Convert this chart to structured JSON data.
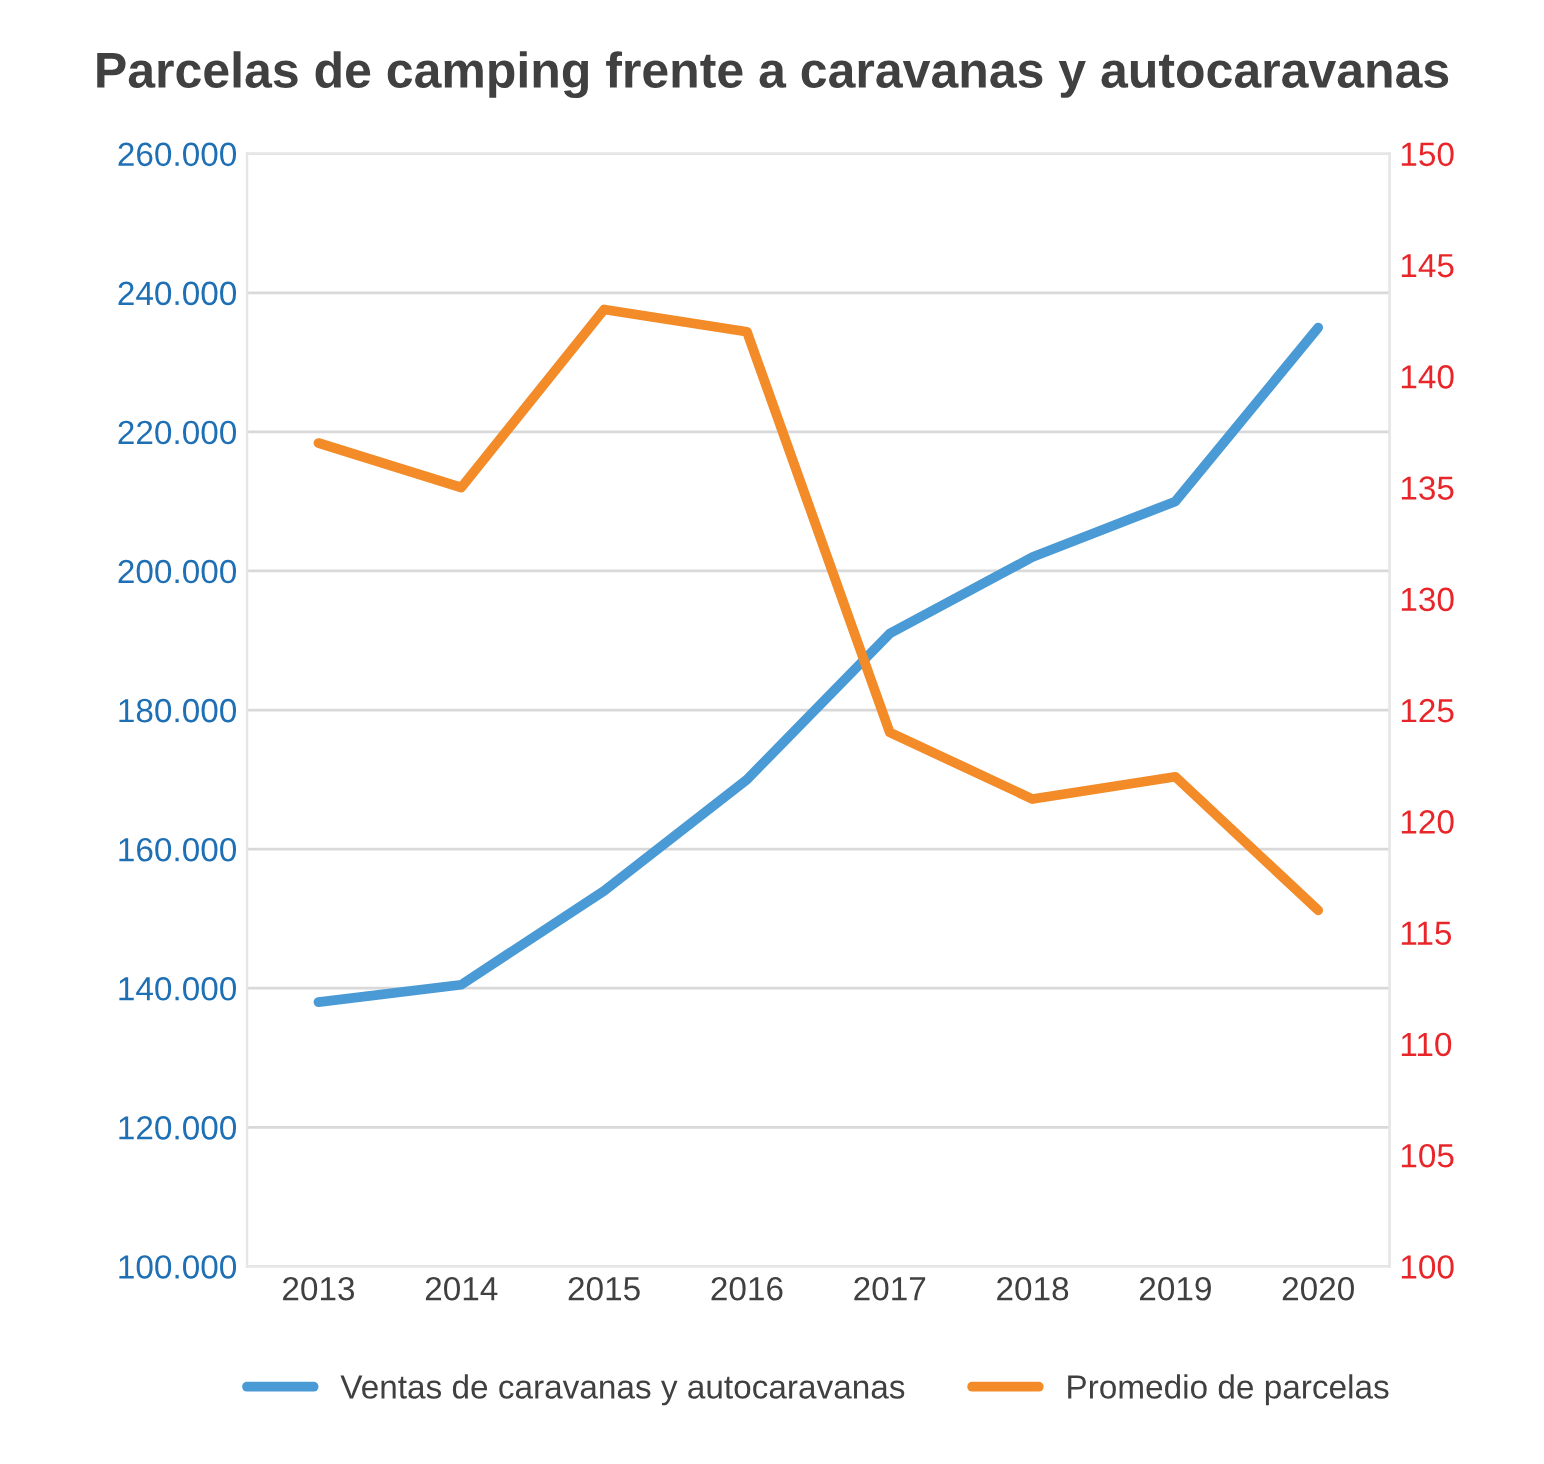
{
  "chart_data": {
    "type": "line",
    "title": "Parcelas de camping frente a caravanas y autocaravanas",
    "categories": [
      "2013",
      "2014",
      "2015",
      "2016",
      "2017",
      "2018",
      "2019",
      "2020"
    ],
    "series": [
      {
        "name": "Ventas de caravanas y autocaravanas",
        "color": "#4a9ad6",
        "values": [
          138000,
          140500,
          154000,
          170000,
          191000,
          202000,
          210000,
          235000
        ]
      },
      {
        "name": "Promedio de parcelas",
        "color": "#f28b28",
        "axis": "y2",
        "values": [
          137,
          135,
          143,
          142,
          124,
          121,
          122,
          116
        ]
      }
    ],
    "ylim": [
      100000,
      260000
    ],
    "yticks": [
      {
        "value": 100000,
        "label": "100.000"
      },
      {
        "value": 120000,
        "label": "120.000"
      },
      {
        "value": 140000,
        "label": "140.000"
      },
      {
        "value": 160000,
        "label": "160.000"
      },
      {
        "value": 180000,
        "label": "180.000"
      },
      {
        "value": 200000,
        "label": "200.000"
      },
      {
        "value": 220000,
        "label": "220.000"
      },
      {
        "value": 240000,
        "label": "240.000"
      },
      {
        "value": 260000,
        "label": "260.000"
      }
    ],
    "y2lim": [
      100,
      150
    ],
    "y2ticks": [
      100,
      105,
      110,
      115,
      120,
      125,
      130,
      135,
      140,
      145,
      150
    ],
    "grid": "y",
    "legend": "bottom",
    "marker": "none",
    "line_style": "solid"
  }
}
